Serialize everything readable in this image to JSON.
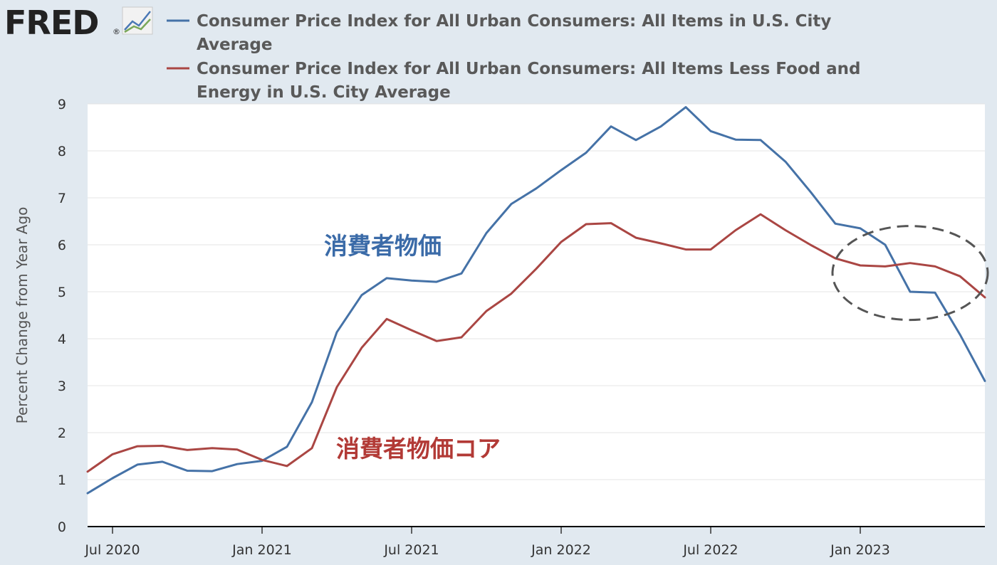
{
  "logo": {
    "text": "FRED",
    "mark": "®",
    "icon": "chart-line-icon"
  },
  "legend": [
    {
      "color": "#4572a7",
      "line1": "Consumer Price Index for All Urban Consumers: All Items in U.S. City",
      "line2": "Average"
    },
    {
      "color": "#aa4643",
      "line1": "Consumer Price Index for All Urban Consumers: All Items Less Food and",
      "line2": "Energy in U.S. City Average"
    }
  ],
  "annotations": {
    "headline": {
      "text": "消費者物価",
      "color": "#3b6ba8"
    },
    "core": {
      "text": "消費者物価コア",
      "color": "#b23a36"
    }
  },
  "chart_data": {
    "type": "line",
    "ylabel": "Percent Change from Year Ago",
    "xlabel": "",
    "ylim": [
      0,
      9
    ],
    "y_ticks": [
      0,
      1,
      2,
      3,
      4,
      5,
      6,
      7,
      8,
      9
    ],
    "x_range": [
      "2020-06",
      "2023-06"
    ],
    "x_ticks": [
      {
        "label": "Jul 2020",
        "month": "2020-07"
      },
      {
        "label": "Jan 2021",
        "month": "2021-01"
      },
      {
        "label": "Jul 2021",
        "month": "2021-07"
      },
      {
        "label": "Jan 2022",
        "month": "2022-01"
      },
      {
        "label": "Jul 2022",
        "month": "2022-07"
      },
      {
        "label": "Jan 2023",
        "month": "2023-01"
      }
    ],
    "grid": true,
    "x": [
      "2020-06",
      "2020-07",
      "2020-08",
      "2020-09",
      "2020-10",
      "2020-11",
      "2020-12",
      "2021-01",
      "2021-02",
      "2021-03",
      "2021-04",
      "2021-05",
      "2021-06",
      "2021-07",
      "2021-08",
      "2021-09",
      "2021-10",
      "2021-11",
      "2021-12",
      "2022-01",
      "2022-02",
      "2022-03",
      "2022-04",
      "2022-05",
      "2022-06",
      "2022-07",
      "2022-08",
      "2022-09",
      "2022-10",
      "2022-11",
      "2022-12",
      "2023-01",
      "2023-02",
      "2023-03",
      "2023-04",
      "2023-05",
      "2023-06"
    ],
    "series": [
      {
        "name": "Consumer Price Index for All Urban Consumers: All Items in U.S. City Average",
        "color": "#4572a7",
        "values": [
          0.71,
          1.03,
          1.32,
          1.38,
          1.19,
          1.18,
          1.33,
          1.4,
          1.7,
          2.65,
          4.14,
          4.93,
          5.29,
          5.24,
          5.21,
          5.39,
          6.25,
          6.87,
          7.2,
          7.59,
          7.96,
          8.52,
          8.23,
          8.52,
          8.93,
          8.42,
          8.24,
          8.23,
          7.77,
          7.13,
          6.45,
          6.35,
          6.0,
          5.0,
          4.98,
          4.09,
          3.1
        ]
      },
      {
        "name": "Consumer Price Index for All Urban Consumers: All Items Less Food and Energy in U.S. City Average",
        "color": "#aa4643",
        "values": [
          1.17,
          1.54,
          1.71,
          1.72,
          1.63,
          1.67,
          1.64,
          1.42,
          1.29,
          1.67,
          2.97,
          3.81,
          4.42,
          4.18,
          3.95,
          4.03,
          4.59,
          4.96,
          5.49,
          6.06,
          6.44,
          6.46,
          6.15,
          6.03,
          5.9,
          5.9,
          6.31,
          6.65,
          6.31,
          6.0,
          5.71,
          5.56,
          5.54,
          5.61,
          5.54,
          5.33,
          4.88
        ]
      }
    ],
    "highlight": {
      "shape": "dashed-ellipse",
      "x_from": "2022-12",
      "x_to": "2023-06",
      "y_from": 4.4,
      "y_to": 6.4
    }
  }
}
